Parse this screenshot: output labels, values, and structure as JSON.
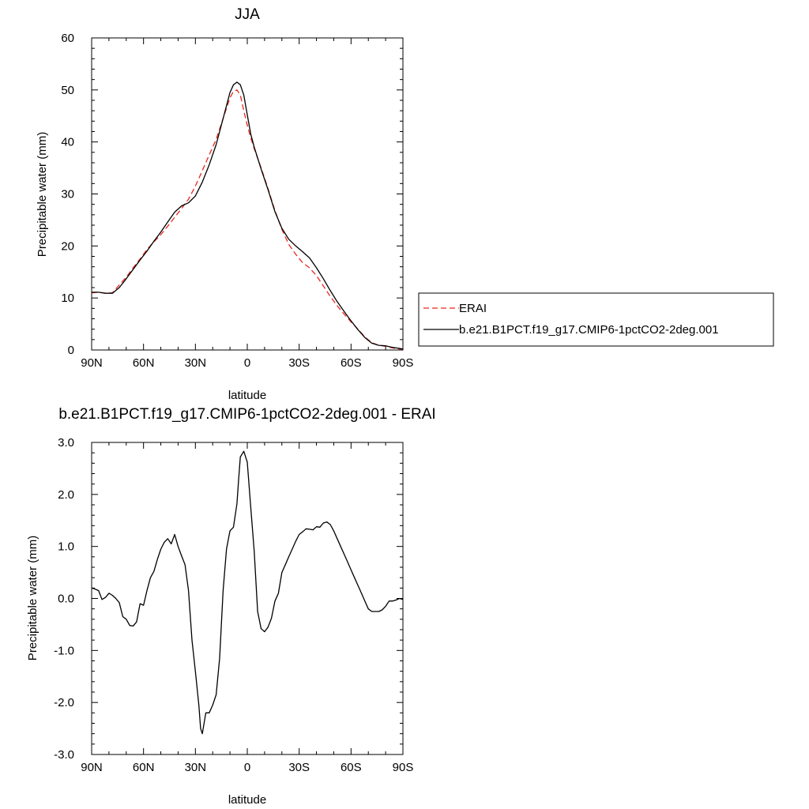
{
  "chart_data": [
    {
      "type": "line",
      "title": "JJA",
      "xlabel": "latitude",
      "ylabel": "Precipitable water (mm)",
      "xlim": [
        90,
        -90
      ],
      "ylim": [
        0,
        60
      ],
      "x_ticks": [
        {
          "value": 90,
          "label": "90N"
        },
        {
          "value": 60,
          "label": "60N"
        },
        {
          "value": 30,
          "label": "30N"
        },
        {
          "value": 0,
          "label": "0"
        },
        {
          "value": -30,
          "label": "30S"
        },
        {
          "value": -60,
          "label": "60S"
        },
        {
          "value": -90,
          "label": "90S"
        }
      ],
      "y_ticks": [
        {
          "value": 0,
          "label": "0"
        },
        {
          "value": 10,
          "label": "10"
        },
        {
          "value": 20,
          "label": "20"
        },
        {
          "value": 30,
          "label": "30"
        },
        {
          "value": 40,
          "label": "40"
        },
        {
          "value": 50,
          "label": "50"
        },
        {
          "value": 60,
          "label": "60"
        }
      ],
      "grid": false,
      "legend_position": "right",
      "x": [
        90,
        86,
        82,
        78,
        74,
        70,
        66,
        62,
        58,
        54,
        50,
        46,
        42,
        38,
        34,
        30,
        26,
        22,
        18,
        14,
        10,
        8,
        6,
        4,
        2,
        0,
        -2,
        -4,
        -8,
        -12,
        -16,
        -20,
        -24,
        -28,
        -32,
        -36,
        -40,
        -44,
        -48,
        -52,
        -56,
        -60,
        -64,
        -68,
        -72,
        -76,
        -80,
        -84,
        -88,
        -90
      ],
      "series": [
        {
          "name": "ERAI",
          "color": "#e8271c",
          "dash": "dashed",
          "values": [
            11.0,
            11.1,
            10.9,
            11.0,
            12.5,
            14.0,
            15.8,
            17.5,
            19.3,
            20.8,
            22.2,
            23.8,
            25.5,
            27.2,
            29.0,
            31.5,
            34.5,
            37.5,
            40.5,
            44.5,
            48.5,
            49.7,
            50.0,
            49.0,
            46.0,
            43.2,
            40.8,
            38.7,
            35.0,
            31.0,
            26.8,
            23.2,
            20.3,
            18.4,
            16.8,
            15.8,
            14.3,
            12.3,
            10.3,
            8.5,
            6.9,
            5.4,
            4.0,
            2.5,
            1.4,
            0.9,
            0.7,
            0.4,
            0.2,
            0.2
          ]
        },
        {
          "name": "b.e21.B1PCT.f19_g17.CMIP6-1pctCO2-2deg.001",
          "color": "#000000",
          "dash": "solid",
          "values": [
            11.1,
            11.1,
            10.9,
            10.9,
            12.0,
            13.7,
            15.5,
            17.3,
            19.0,
            20.9,
            22.7,
            24.6,
            26.5,
            27.7,
            28.3,
            29.6,
            32.3,
            35.6,
            39.5,
            44.5,
            49.5,
            51.0,
            51.5,
            51.0,
            49.0,
            45.2,
            41.5,
            39.0,
            34.8,
            30.8,
            26.6,
            23.4,
            21.3,
            20.0,
            18.9,
            17.7,
            15.8,
            13.7,
            11.4,
            9.3,
            7.4,
            5.6,
            3.9,
            2.4,
            1.3,
            0.9,
            0.8,
            0.5,
            0.3,
            0.2
          ]
        }
      ]
    },
    {
      "type": "line",
      "title": "b.e21.B1PCT.f19_g17.CMIP6-1pctCO2-2deg.001 - ERAI",
      "xlabel": "latitude",
      "ylabel": "Precipitable water (mm)",
      "xlim": [
        90,
        -90
      ],
      "ylim": [
        -3.0,
        3.0
      ],
      "x_ticks": [
        {
          "value": 90,
          "label": "90N"
        },
        {
          "value": 60,
          "label": "60N"
        },
        {
          "value": 30,
          "label": "30N"
        },
        {
          "value": 0,
          "label": "0"
        },
        {
          "value": -30,
          "label": "30S"
        },
        {
          "value": -60,
          "label": "60S"
        },
        {
          "value": -90,
          "label": "90S"
        }
      ],
      "y_ticks": [
        {
          "value": -3.0,
          "label": "-3.0"
        },
        {
          "value": -2.0,
          "label": "-2.0"
        },
        {
          "value": -1.0,
          "label": "-1.0"
        },
        {
          "value": 0.0,
          "label": "0.0"
        },
        {
          "value": 1.0,
          "label": "1.0"
        },
        {
          "value": 2.0,
          "label": "2.0"
        },
        {
          "value": 3.0,
          "label": "3.0"
        }
      ],
      "grid": false,
      "x": [
        90,
        88,
        86,
        84,
        82,
        80,
        78,
        76,
        74,
        72,
        70,
        68,
        66,
        64,
        62,
        60,
        58,
        56,
        54,
        52,
        50,
        48,
        46,
        44,
        42,
        40,
        38,
        36,
        34,
        32,
        30,
        28,
        27,
        26,
        24,
        22,
        20,
        18,
        16,
        14,
        12,
        10,
        8,
        6,
        5,
        4,
        2,
        0,
        -2,
        -4,
        -6,
        -8,
        -10,
        -12,
        -14,
        -16,
        -18,
        -20,
        -22,
        -24,
        -26,
        -28,
        -30,
        -32,
        -34,
        -36,
        -38,
        -40,
        -42,
        -44,
        -46,
        -48,
        -50,
        -52,
        -54,
        -56,
        -58,
        -60,
        -62,
        -64,
        -66,
        -68,
        -70,
        -72,
        -74,
        -76,
        -78,
        -80,
        -82,
        -84,
        -86,
        -88,
        -90
      ],
      "series": [
        {
          "color": "#000000",
          "dash": "solid",
          "values": [
            0.2,
            0.18,
            0.15,
            -0.02,
            0.02,
            0.1,
            0.06,
            0.0,
            -0.08,
            -0.35,
            -0.4,
            -0.52,
            -0.53,
            -0.45,
            -0.1,
            -0.13,
            0.15,
            0.4,
            0.52,
            0.75,
            0.95,
            1.08,
            1.15,
            1.05,
            1.23,
            1.0,
            0.82,
            0.65,
            0.15,
            -0.8,
            -1.4,
            -2.05,
            -2.5,
            -2.6,
            -2.2,
            -2.2,
            -2.05,
            -1.85,
            -1.15,
            0.15,
            0.95,
            1.3,
            1.37,
            1.82,
            2.3,
            2.72,
            2.83,
            2.62,
            1.75,
            0.9,
            -0.25,
            -0.58,
            -0.64,
            -0.55,
            -0.38,
            -0.05,
            0.1,
            0.5,
            0.65,
            0.8,
            0.95,
            1.1,
            1.23,
            1.28,
            1.34,
            1.33,
            1.32,
            1.38,
            1.37,
            1.45,
            1.47,
            1.42,
            1.3,
            1.15,
            1.0,
            0.85,
            0.7,
            0.55,
            0.4,
            0.25,
            0.1,
            -0.05,
            -0.2,
            -0.25,
            -0.25,
            -0.25,
            -0.22,
            -0.15,
            -0.05,
            -0.05,
            -0.03,
            0.0,
            -0.02
          ]
        }
      ]
    }
  ]
}
